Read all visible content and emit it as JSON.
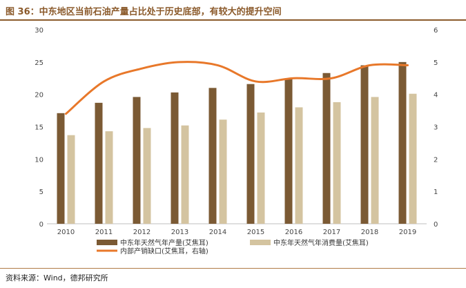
{
  "title": "图 36：中东地区当前石油产量占比处于历史底部，有较大的提升空间",
  "source": "资料来源：Wind，德邦研究所",
  "colors": {
    "title": "#8b5a2b",
    "production_bar": "#7b5a34",
    "consumption_bar": "#d4c4a0",
    "gap_line": "#e8782a"
  },
  "chart_data": {
    "type": "bar",
    "categories": [
      "2010",
      "2011",
      "2012",
      "2013",
      "2014",
      "2015",
      "2016",
      "2017",
      "2018",
      "2019"
    ],
    "ylim": [
      0,
      30
    ],
    "yticks": [
      0,
      5,
      10,
      15,
      20,
      25,
      30
    ],
    "y2lim": [
      0,
      6
    ],
    "y2ticks": [
      0,
      1,
      2,
      3,
      4,
      5,
      6
    ],
    "grid": false,
    "legend_position": "bottom",
    "series": [
      {
        "name": "中东年天然气年产量(艾焦耳)",
        "type": "bar",
        "axis": "left",
        "values": [
          17.1,
          18.7,
          19.6,
          20.3,
          21.0,
          21.6,
          22.5,
          23.3,
          24.5,
          25.0
        ]
      },
      {
        "name": "中东年天然气年消费量(艾焦耳)",
        "type": "bar",
        "axis": "left",
        "values": [
          13.7,
          14.3,
          14.8,
          15.2,
          16.1,
          17.2,
          18.0,
          18.8,
          19.6,
          20.1
        ]
      },
      {
        "name": "内部产销缺口(艾焦耳，右轴)",
        "type": "line",
        "axis": "right",
        "values": [
          3.4,
          4.4,
          4.8,
          5.0,
          4.9,
          4.4,
          4.5,
          4.5,
          4.9,
          4.9
        ]
      }
    ]
  }
}
